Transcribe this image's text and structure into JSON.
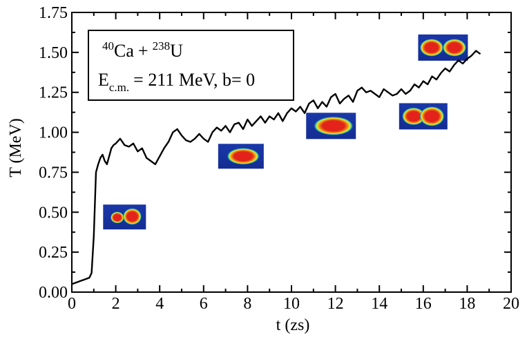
{
  "chart_data": {
    "type": "line",
    "xlabel": "t (zs)",
    "ylabel": "T (MeV)",
    "xlim": [
      0,
      20
    ],
    "ylim": [
      0,
      1.75
    ],
    "x_ticks": [
      "0",
      "2",
      "4",
      "6",
      "8",
      "10",
      "12",
      "14",
      "16",
      "18",
      "20"
    ],
    "y_ticks": [
      "0.00",
      "0.25",
      "0.50",
      "0.75",
      "1.00",
      "1.25",
      "1.50",
      "1.75"
    ],
    "grid": false,
    "series": [
      {
        "x": [
          0,
          0.2,
          0.4,
          0.6,
          0.8,
          0.9,
          1.0,
          1.1,
          1.2,
          1.3,
          1.4,
          1.5,
          1.6,
          1.7,
          1.8,
          1.9,
          2.0,
          2.2,
          2.4,
          2.6,
          2.8,
          3.0,
          3.2,
          3.4,
          3.6,
          3.8,
          4.0,
          4.2,
          4.4,
          4.6,
          4.8,
          5.0,
          5.2,
          5.4,
          5.6,
          5.8,
          6.0,
          6.2,
          6.4,
          6.6,
          6.8,
          7.0,
          7.2,
          7.4,
          7.6,
          7.8,
          8.0,
          8.2,
          8.4,
          8.6,
          8.8,
          9.0,
          9.2,
          9.4,
          9.6,
          9.8,
          10.0,
          10.2,
          10.4,
          10.6,
          10.8,
          11.0,
          11.2,
          11.4,
          11.6,
          11.8,
          12.0,
          12.2,
          12.4,
          12.6,
          12.8,
          13.0,
          13.2,
          13.4,
          13.6,
          13.8,
          14.0,
          14.2,
          14.4,
          14.6,
          14.8,
          15.0,
          15.2,
          15.4,
          15.6,
          15.8,
          16.0,
          16.2,
          16.4,
          16.6,
          16.8,
          17.0,
          17.2,
          17.4,
          17.6,
          17.8,
          18.0,
          18.2,
          18.4,
          18.6
        ],
        "y": [
          0.05,
          0.06,
          0.07,
          0.08,
          0.09,
          0.12,
          0.35,
          0.75,
          0.8,
          0.84,
          0.86,
          0.82,
          0.8,
          0.85,
          0.9,
          0.92,
          0.93,
          0.96,
          0.92,
          0.91,
          0.93,
          0.88,
          0.9,
          0.84,
          0.82,
          0.8,
          0.85,
          0.9,
          0.94,
          1.0,
          1.02,
          0.98,
          0.95,
          0.94,
          0.96,
          0.99,
          0.96,
          0.94,
          1.0,
          1.03,
          1.01,
          1.04,
          1.0,
          1.05,
          1.06,
          1.02,
          1.08,
          1.04,
          1.07,
          1.1,
          1.06,
          1.1,
          1.08,
          1.12,
          1.07,
          1.12,
          1.15,
          1.13,
          1.16,
          1.12,
          1.18,
          1.2,
          1.15,
          1.19,
          1.16,
          1.22,
          1.24,
          1.18,
          1.21,
          1.23,
          1.19,
          1.26,
          1.28,
          1.25,
          1.26,
          1.24,
          1.22,
          1.27,
          1.25,
          1.23,
          1.24,
          1.27,
          1.24,
          1.26,
          1.3,
          1.28,
          1.32,
          1.3,
          1.35,
          1.33,
          1.37,
          1.4,
          1.38,
          1.42,
          1.45,
          1.43,
          1.46,
          1.48,
          1.51,
          1.49
        ]
      }
    ],
    "annotations": {
      "reaction_base1": "Ca",
      "reaction_sup1": "40",
      "reaction_plus": "+",
      "reaction_base2": "U",
      "reaction_sup2": "238",
      "energy_symbol": "E",
      "energy_sub": "c.m.",
      "energy_rest": "= 211 MeV, b= 0"
    },
    "insets": [
      {
        "name": "density-snapshot-1",
        "t": 2.4,
        "T": 0.47
      },
      {
        "name": "density-snapshot-2",
        "t": 7.7,
        "T": 0.85
      },
      {
        "name": "density-snapshot-3",
        "t": 11.8,
        "T": 1.04
      },
      {
        "name": "density-snapshot-4",
        "t": 16.0,
        "T": 1.1
      },
      {
        "name": "density-snapshot-5",
        "t": 16.9,
        "T": 1.53
      }
    ]
  }
}
